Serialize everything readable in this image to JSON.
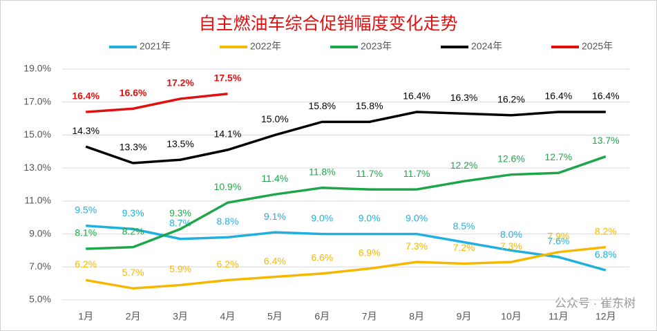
{
  "chart_data": {
    "type": "line",
    "title": "自主燃油车综合促销幅度变化走势",
    "categories": [
      "1月",
      "2月",
      "3月",
      "4月",
      "5月",
      "6月",
      "7月",
      "8月",
      "9月",
      "10月",
      "11月",
      "12月"
    ],
    "ylim": [
      5,
      19
    ],
    "yticks": [
      {
        "value": 5,
        "label": "5.0%"
      },
      {
        "value": 7,
        "label": "7.0%"
      },
      {
        "value": 9,
        "label": "9.0%"
      },
      {
        "value": 11,
        "label": "11.0%"
      },
      {
        "value": 13,
        "label": "13.0%"
      },
      {
        "value": 15,
        "label": "15.0%"
      },
      {
        "value": 17,
        "label": "17.0%"
      },
      {
        "value": 19,
        "label": "19.0%"
      }
    ],
    "grid": true,
    "legend": "top",
    "watermark": "公众号 · 崔东树",
    "series": [
      {
        "name": "2021年",
        "color": "#1fb0e0",
        "values": [
          9.5,
          9.3,
          8.7,
          8.8,
          9.1,
          9.0,
          9.0,
          9.0,
          8.5,
          8.0,
          7.6,
          6.8
        ],
        "value_labels": [
          "9.5%",
          "9.3%",
          "8.7%",
          "8.8%",
          "9.1%",
          "9.0%",
          "9.0%",
          "9.0%",
          "8.5%",
          "8.0%",
          "7.6%",
          "6.8%"
        ]
      },
      {
        "name": "2022年",
        "color": "#f5b800",
        "values": [
          6.2,
          5.7,
          5.9,
          6.2,
          6.4,
          6.6,
          6.9,
          7.3,
          7.2,
          7.3,
          7.9,
          8.2
        ],
        "value_labels": [
          "6.2%",
          "5.7%",
          "5.9%",
          "6.2%",
          "6.4%",
          "6.6%",
          "6.9%",
          "7.3%",
          "7.2%",
          "7.3%",
          "7.9%",
          "8.2%"
        ]
      },
      {
        "name": "2023年",
        "color": "#1fa64a",
        "values": [
          8.1,
          8.2,
          9.3,
          10.9,
          11.4,
          11.8,
          11.7,
          11.7,
          12.2,
          12.6,
          12.7,
          13.7
        ],
        "value_labels": [
          "8.1%",
          "8.2%",
          "9.3%",
          "10.9%",
          "11.4%",
          "11.8%",
          "11.7%",
          "11.7%",
          "12.2%",
          "12.6%",
          "12.7%",
          "13.7%"
        ]
      },
      {
        "name": "2024年",
        "color": "#000000",
        "values": [
          14.3,
          13.3,
          13.5,
          14.1,
          15.0,
          15.8,
          15.8,
          16.4,
          16.3,
          16.2,
          16.4,
          16.4
        ],
        "value_labels": [
          "14.3%",
          "13.3%",
          "13.5%",
          "14.1%",
          "15.0%",
          "15.8%",
          "15.8%",
          "16.4%",
          "16.3%",
          "16.2%",
          "16.4%",
          "16.4%"
        ]
      },
      {
        "name": "2025年",
        "color": "#e01010",
        "values": [
          16.4,
          16.6,
          17.2,
          17.5,
          null,
          null,
          null,
          null,
          null,
          null,
          null,
          null
        ],
        "value_labels": [
          "16.4%",
          "16.6%",
          "17.2%",
          "17.5%",
          null,
          null,
          null,
          null,
          null,
          null,
          null,
          null
        ]
      }
    ]
  }
}
